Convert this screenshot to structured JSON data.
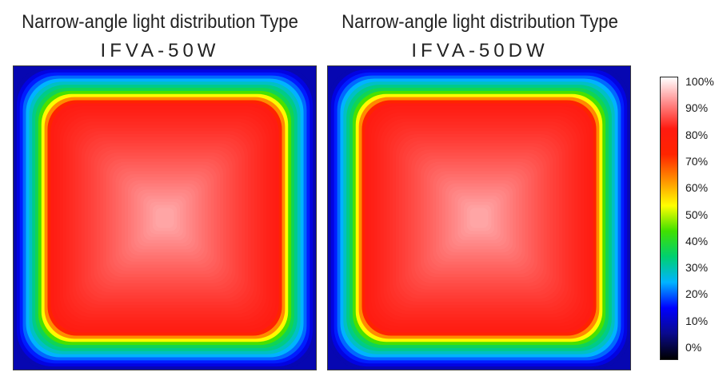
{
  "chart_data": {
    "type": "heatmap",
    "panels": [
      {
        "title": "Narrow-angle light distribution Type",
        "subtitle": "IFVA-50W",
        "center_value": 93,
        "inner_ring_value": 82,
        "edge_value": 40,
        "corner_value": 12
      },
      {
        "title": "Narrow-angle light distribution Type",
        "subtitle": "IFVA-50DW",
        "center_value": 93,
        "inner_ring_value": 82,
        "edge_value": 40,
        "corner_value": 12
      }
    ],
    "colorbar": {
      "ticks": [
        "100%",
        "90%",
        "80%",
        "70%",
        "60%",
        "50%",
        "40%",
        "30%",
        "20%",
        "10%",
        "0%"
      ],
      "range": [
        0,
        100
      ],
      "colors": [
        "#000000",
        "#0a0a8c",
        "#0000ff",
        "#00b4ff",
        "#00d070",
        "#40e000",
        "#ffff00",
        "#ff9000",
        "#ff2400",
        "#ff1a10",
        "#ff8a8a",
        "#ffffff"
      ]
    }
  }
}
